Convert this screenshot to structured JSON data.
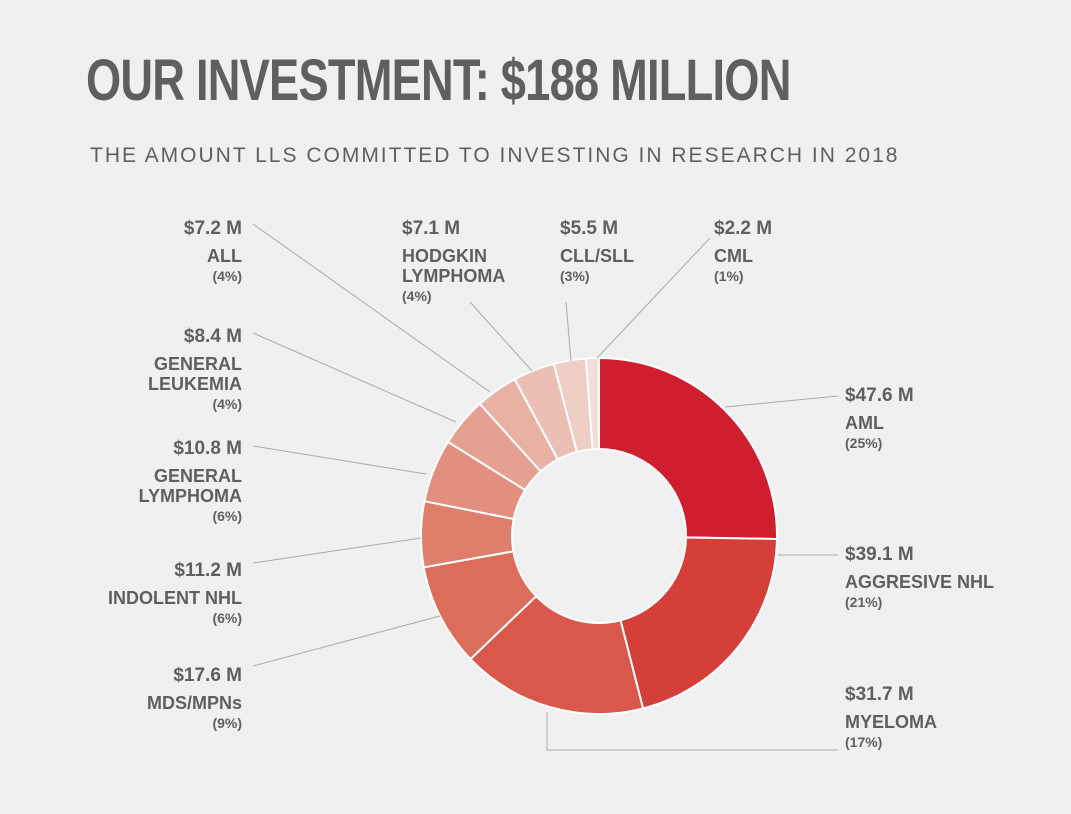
{
  "chart_data": {
    "type": "donut",
    "title": "OUR INVESTMENT: $188 MILLION",
    "subtitle": "THE AMOUNT LLS COMMITTED TO INVESTING IN RESEARCH IN 2018",
    "slices": [
      {
        "amount": "$47.6 M",
        "name": [
          "AML"
        ],
        "pct": "(25%)",
        "value": 47.6,
        "color": "#cf1f2e"
      },
      {
        "amount": "$39.1 M",
        "name": [
          "AGGRESIVE NHL"
        ],
        "pct": "(21%)",
        "value": 39.1,
        "color": "#d43f38"
      },
      {
        "amount": "$31.7 M",
        "name": [
          "MYELOMA"
        ],
        "pct": "(17%)",
        "value": 31.7,
        "color": "#d9574b"
      },
      {
        "amount": "$17.6 M",
        "name": [
          "MDS/MPNs"
        ],
        "pct": "(9%)",
        "value": 17.6,
        "color": "#dd6d5b"
      },
      {
        "amount": "$11.2 M",
        "name": [
          "INDOLENT NHL"
        ],
        "pct": "(6%)",
        "value": 11.2,
        "color": "#e07e6c"
      },
      {
        "amount": "$10.8 M",
        "name": [
          "GENERAL",
          "LYMPHOMA"
        ],
        "pct": "(6%)",
        "value": 10.8,
        "color": "#e38f7f"
      },
      {
        "amount": "$8.4 M",
        "name": [
          "GENERAL",
          "LEUKEMIA"
        ],
        "pct": "(4%)",
        "value": 8.4,
        "color": "#e6a092"
      },
      {
        "amount": "$7.2 M",
        "name": [
          "ALL"
        ],
        "pct": "(4%)",
        "value": 7.2,
        "color": "#e9b0a4"
      },
      {
        "amount": "$7.1 M",
        "name": [
          "HODGKIN",
          "LYMPHOMA"
        ],
        "pct": "(4%)",
        "value": 7.1,
        "color": "#ecbfb5"
      },
      {
        "amount": "$5.5 M",
        "name": [
          "CLL/SLL"
        ],
        "pct": "(3%)",
        "value": 5.5,
        "color": "#efcec6"
      },
      {
        "amount": "$2.2 M",
        "name": [
          "CML"
        ],
        "pct": "(1%)",
        "value": 2.2,
        "color": "#f2ddd8"
      }
    ]
  }
}
